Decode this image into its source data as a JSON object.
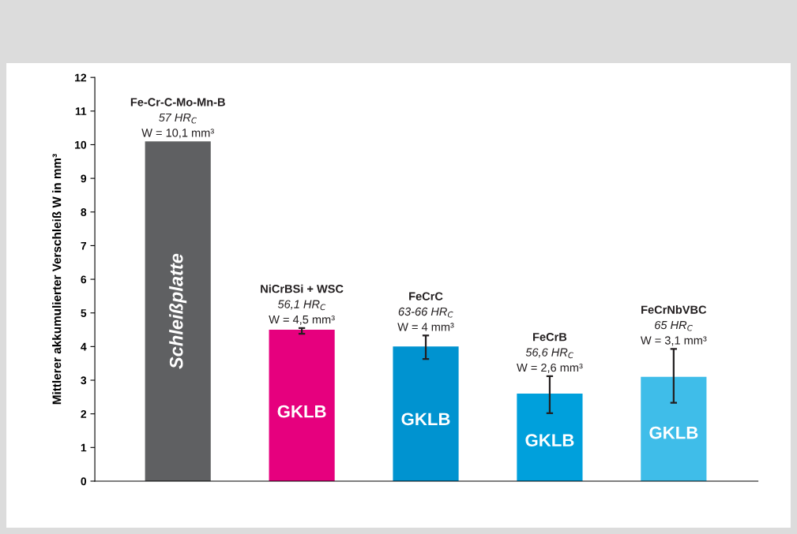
{
  "chart_data": {
    "type": "bar",
    "ylabel": "Mittlerer akkumulierter Verschleiß W in mm³",
    "categories": [
      null,
      null,
      null,
      null,
      null
    ],
    "values": [
      10.1,
      4.5,
      4,
      2.6,
      3.1
    ],
    "colors": [
      "#5f6062",
      "#e6007e",
      "#0093d0",
      "#00a0dc",
      "#3fbde9"
    ],
    "errors": [
      null,
      [
        4.38,
        4.55
      ],
      [
        3.63,
        4.33
      ],
      [
        2.02,
        3.12
      ],
      [
        2.33,
        3.93
      ]
    ],
    "value_labels": [
      "Fe-Cr-C-Mo-Mn-B\n57 HR$_{C}$\nW = 10,1 mm³",
      "NiCrBSi + WSC\n56,1 HR$_{C}$\nW = 4,5 mm³",
      "FeCrC\n63-66 HR$_{C}$\nW = 4 mm³",
      "FeCrB\n56,6 HR$_{C}$\nW = 2,6 mm³",
      "FeCrNbVBC\n65 HR$_{C}$\nW = 3,1 mm³"
    ],
    "annotations": [
      "Schleißplatte",
      "GKLB",
      "GKLB",
      "GKLB",
      "GKLB"
    ],
    "ylim": [
      0,
      12
    ],
    "yticks": [
      0,
      1,
      2,
      3,
      4,
      5,
      6,
      7,
      8,
      9,
      10,
      11,
      12
    ],
    "grid": false,
    "legend": false
  }
}
